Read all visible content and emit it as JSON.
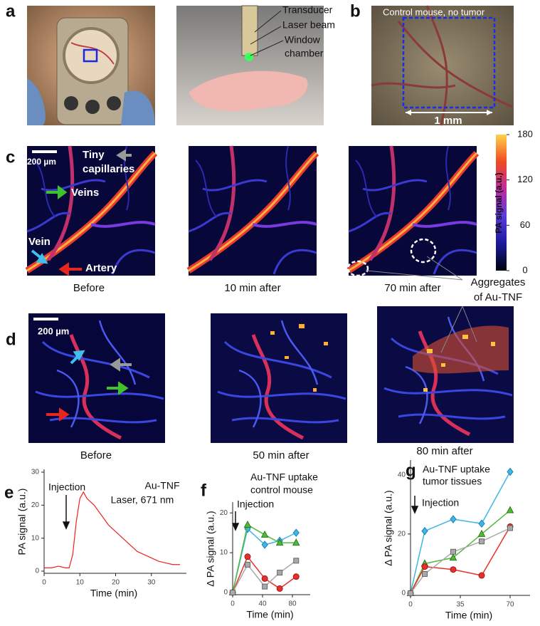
{
  "panel_labels": [
    "a",
    "b",
    "c",
    "d",
    "e",
    "f",
    "g"
  ],
  "panel_a": {
    "labels": [
      "Transducer",
      "Laser beam"
    ],
    "window_chamber": [
      "Window",
      "chamber"
    ]
  },
  "panel_b": {
    "caption": "Control mouse, no tumor",
    "scale": "1 mm"
  },
  "panel_c": {
    "scale": "200 µm",
    "capillaries": [
      "Tiny",
      "capillaries"
    ],
    "veins": "Veins",
    "vein": "Vein",
    "artery": "Artery",
    "captions": [
      "Before",
      "10 min after",
      "70 min after"
    ],
    "colorbar": {
      "label": "PA signal (a.u.)",
      "lim": [
        0,
        180
      ],
      "ticks": [
        0,
        60,
        120,
        180
      ]
    },
    "aggregates": [
      "Aggregates",
      "of Au-TNF"
    ]
  },
  "panel_d": {
    "scale": "200 µm",
    "captions": [
      "Before",
      "50 min after",
      "80 min after"
    ]
  },
  "charts": [
    {
      "type": "line",
      "annotations": [
        "Injection",
        "Au-TNF",
        "Laser, 671 nm"
      ],
      "xlabel": "Time (min)",
      "ylabel": "PA signal (a.u.)",
      "xlim": [
        0,
        39
      ],
      "ylim": [
        0,
        30
      ],
      "xticks": [
        0,
        10,
        20,
        30
      ],
      "yticks": [
        0,
        10,
        20,
        30
      ],
      "x": [
        0,
        2,
        4,
        6,
        7,
        8,
        9,
        10,
        11,
        12,
        14,
        16,
        18,
        20,
        22,
        24,
        26,
        28,
        30,
        32,
        34,
        36,
        38
      ],
      "series": [
        {
          "color": "#e8251e",
          "values": [
            1,
            1,
            1.5,
            1,
            1,
            5,
            15,
            22,
            24,
            22,
            20,
            17,
            14,
            12,
            10,
            8,
            6,
            5,
            4,
            3,
            2.5,
            2,
            2
          ]
        }
      ]
    },
    {
      "type": "line",
      "title": [
        "Au-TNF uptake",
        "control mouse"
      ],
      "annotations": [
        "Injection"
      ],
      "xlabel": "Time (min)",
      "ylabel": "Δ PA signal (a.u.)",
      "xlim": [
        0,
        100
      ],
      "ylim": [
        0,
        22
      ],
      "xticks": [
        0,
        40,
        80
      ],
      "yticks": [
        0,
        10,
        20
      ],
      "x": [
        0,
        20,
        43,
        63,
        85
      ],
      "series": [
        {
          "color": "#3fb6e6",
          "marker": "diamond",
          "values": [
            0,
            16,
            12,
            13,
            15
          ]
        },
        {
          "color": "#56b83a",
          "marker": "triangle",
          "values": [
            0,
            17,
            14.5,
            12.5,
            12.5
          ]
        },
        {
          "color": "#e8302a",
          "marker": "circle",
          "values": [
            0,
            9,
            3.5,
            1,
            4
          ]
        },
        {
          "color": "#a9a9a9",
          "marker": "square",
          "values": [
            0,
            7,
            1.5,
            5,
            8
          ]
        }
      ]
    },
    {
      "type": "line",
      "title": [
        "Au-TNF uptake",
        "tumor tissues"
      ],
      "annotations": [
        "Injection"
      ],
      "xlabel": "Time (min)",
      "ylabel": "Δ PA signal (a.u.)",
      "xlim": [
        0,
        82
      ],
      "ylim": [
        0,
        44
      ],
      "xticks": [
        0,
        35,
        70
      ],
      "yticks": [
        0,
        20,
        40
      ],
      "x": [
        0,
        10,
        30,
        50,
        70
      ],
      "series": [
        {
          "color": "#3fb6e6",
          "marker": "diamond",
          "values": [
            0,
            21,
            25,
            23.5,
            41
          ]
        },
        {
          "color": "#56b83a",
          "marker": "triangle",
          "values": [
            0,
            10,
            12,
            20,
            28
          ]
        },
        {
          "color": "#e8302a",
          "marker": "circle",
          "values": [
            0,
            9,
            8,
            6,
            22.5
          ]
        },
        {
          "color": "#a9a9a9",
          "marker": "square",
          "values": [
            0,
            6.5,
            14,
            17.5,
            22
          ]
        }
      ]
    }
  ]
}
